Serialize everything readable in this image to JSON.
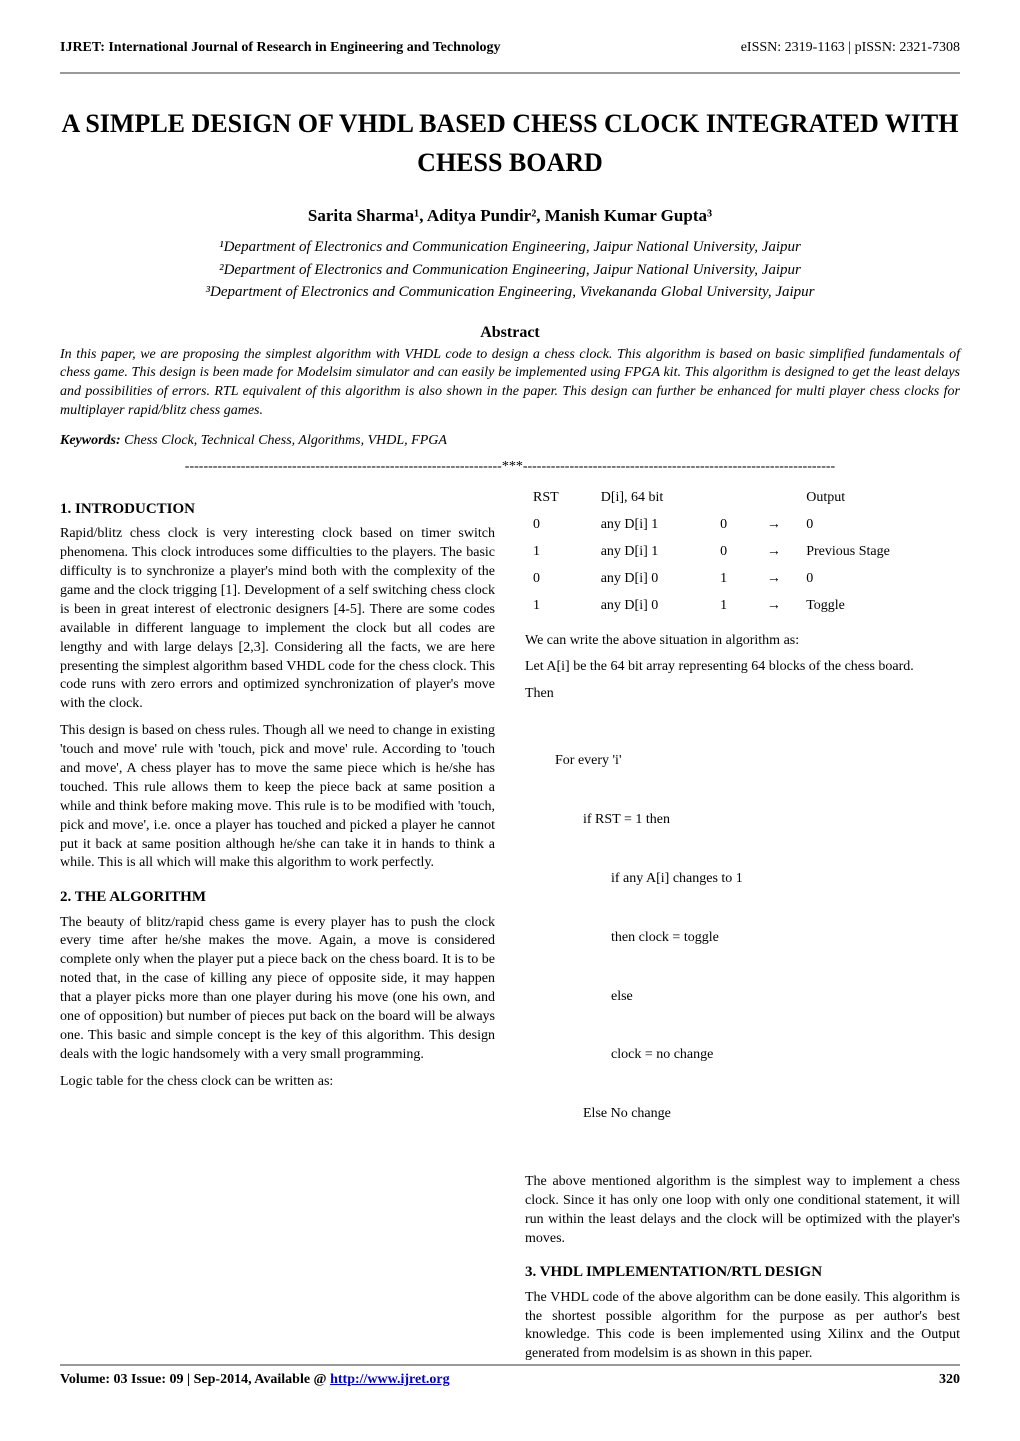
{
  "journal": {
    "name": "IJRET: International Journal of Research in Engineering and Technology",
    "issn": "eISSN: 2319-1163 | pISSN: 2321-7308"
  },
  "title": "A SIMPLE DESIGN OF VHDL BASED CHESS CLOCK INTEGRATED WITH CHESS BOARD",
  "authors_line": "Sarita Sharma¹, Aditya Pundir², Manish Kumar Gupta³",
  "affiliations": [
    "¹Department of Electronics and Communication Engineering, Jaipur National University, Jaipur",
    "²Department of Electronics and Communication Engineering, Jaipur National University, Jaipur",
    "³Department of Electronics and Communication Engineering, Vivekananda Global University, Jaipur"
  ],
  "abstract_heading": "Abstract",
  "abstract_text": "In this paper, we are proposing the simplest algorithm with VHDL code to design a chess clock. This algorithm is based on basic simplified fundamentals of chess game. This design is been made for Modelsim simulator and can easily be implemented using FPGA kit. This algorithm is designed to get the least delays and possibilities of errors. RTL equivalent of this algorithm is also shown in the paper. This design can further be enhanced for multi player chess clocks for multiplayer rapid/blitz chess games.",
  "keywords_label": "Keywords:",
  "keywords_text": " Chess Clock, Technical Chess, Algorithms, VHDL, FPGA",
  "divider": "--------------------------------------------------------------------***-------------------------------------------------------------------",
  "sections": {
    "s1_heading": "1. INTRODUCTION",
    "s1_p1": "Rapid/blitz chess clock is very interesting clock based on timer switch phenomena. This clock introduces some difficulties to the players. The basic difficulty is to synchronize a player's mind both with the complexity of the game and the clock trigging [1]. Development of a self switching chess clock is been in great interest of electronic designers [4-5]. There are some codes available in different language to implement the clock but all codes are lengthy and with large delays [2,3]. Considering all the facts, we are here presenting the simplest algorithm based VHDL code for the chess clock. This code runs with zero errors and optimized synchronization of player's move with the clock.",
    "s1_p2": "This design is based on chess rules. Though all we need to change in existing 'touch and move' rule with 'touch, pick and move' rule. According to 'touch and move', A chess player has to move the same piece which is he/she has touched. This rule allows them to keep the piece back at same position a while and think before making move. This rule is to be modified with 'touch, pick and move', i.e. once a player has touched and picked a player he cannot put it back at same position although he/she can take it in hands to think a while. This is all which will make this algorithm to work perfectly.",
    "s2_heading": "2. THE ALGORITHM",
    "s2_p1": "The beauty of blitz/rapid chess game is every player has to push the clock every time after he/she makes the move. Again, a move is considered complete only when the player put a piece back on the chess board. It is to be noted that, in the case of killing any piece of opposite side, it may happen that a player picks more than one player during his move (one his own, and one of opposition) but number of pieces put back on the board will be always one. This basic and simple concept is the key of this algorithm. This design deals with the logic handsomely with a very small programming.",
    "s2_p2": "Logic table for the chess clock can be written as:",
    "s3_heading": "3. VHDL IMPLEMENTATION/RTL DESIGN",
    "s3_p1": "The VHDL code of the above algorithm can be done easily. This algorithm is the shortest possible algorithm for the purpose as per author's best knowledge. This code is been implemented using Xilinx and the Output generated from modelsim is as shown in this paper."
  },
  "logic_table": {
    "headers": [
      "RST",
      "D[i], 64 bit",
      "",
      "",
      "Output"
    ],
    "rows": [
      [
        "0",
        "any D[i] 1",
        "0",
        "→",
        "0"
      ],
      [
        "1",
        "any D[i] 1",
        "0",
        "→",
        "Previous Stage"
      ],
      [
        "0",
        "any D[i] 0",
        "1",
        "→",
        "0"
      ],
      [
        "1",
        "any D[i] 0",
        "1",
        "→",
        "Toggle"
      ]
    ]
  },
  "after_table_p1": "We can write the above situation in algorithm as:",
  "after_table_p2": "Let A[i] be the 64 bit array representing 64 blocks of the chess board.",
  "then_label": "Then",
  "pseudocode_lines": [
    "For every 'i'",
    "        if RST = 1 then",
    "                if any A[i] changes to 1",
    "                then clock = toggle",
    "                else",
    "                clock = no change",
    "        Else No change"
  ],
  "after_pseudo_p": "The above mentioned algorithm is the simplest way to implement a chess clock. Since it has only one loop with only one conditional statement, it will run within the least delays and the clock will be optimized with the player's moves.",
  "footer": {
    "issue_prefix": "Volume: 03 Issue: 09 | Sep-2014, Available @ ",
    "url": "http://www.ijret.org",
    "page": "320"
  },
  "colors": {
    "text": "#000000",
    "background": "#ffffff",
    "rule": "#999999",
    "link": "#0000cc"
  },
  "fonts": {
    "body_family": "Times New Roman",
    "title_size_pt": 20,
    "body_size_pt": 11
  }
}
